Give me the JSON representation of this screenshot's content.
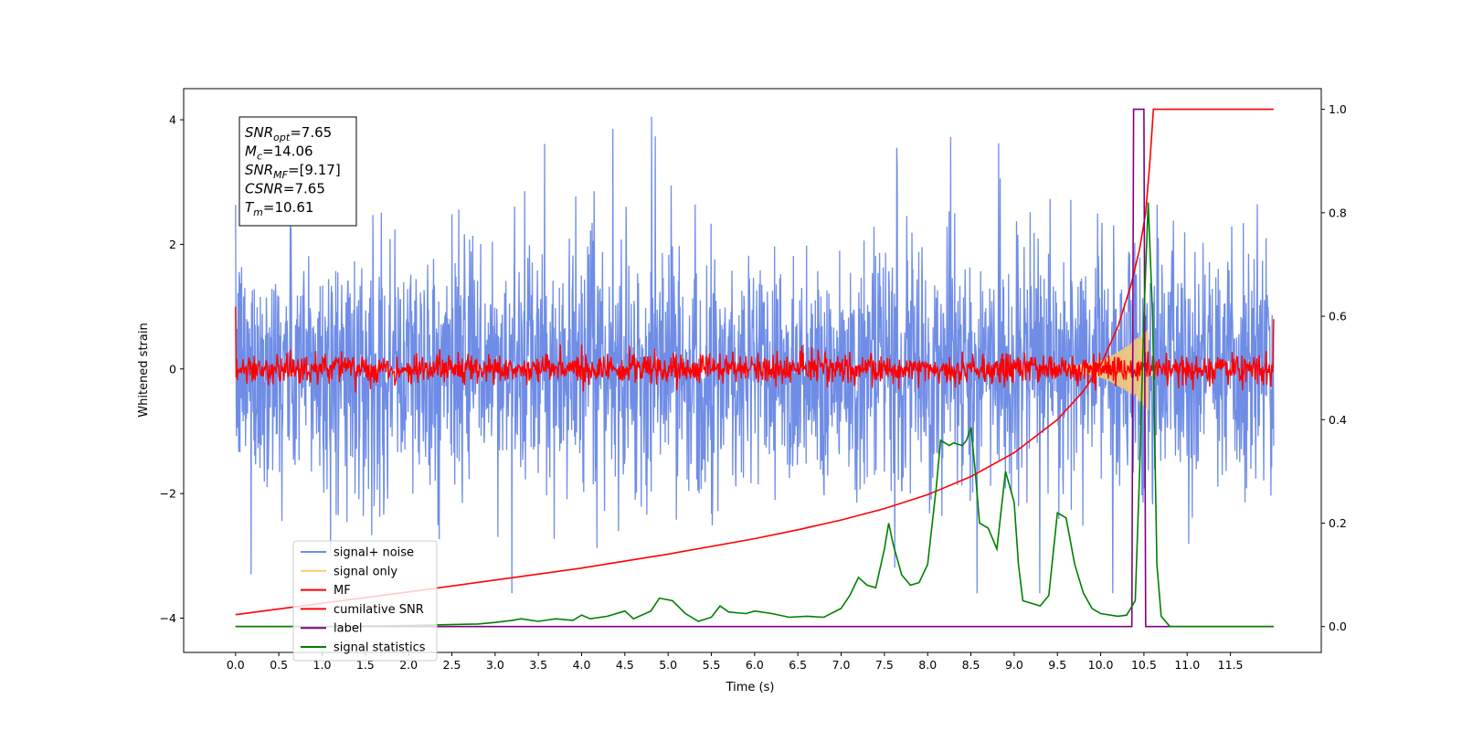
{
  "chart_data": {
    "type": "line",
    "xlabel": "Time (s)",
    "ylabel": "Whitened strain",
    "xlim": [
      -0.6,
      12.55
    ],
    "ylim": [
      -4.55,
      4.5
    ],
    "y2lim": [
      -0.05,
      1.04
    ],
    "x_ticks": [
      "0.0",
      "0.5",
      "1.0",
      "1.5",
      "2.0",
      "2.5",
      "3.0",
      "3.5",
      "4.0",
      "4.5",
      "5.0",
      "5.5",
      "6.0",
      "6.5",
      "7.0",
      "7.5",
      "8.0",
      "8.5",
      "9.0",
      "9.5",
      "10.0",
      "10.5",
      "11.0",
      "11.5"
    ],
    "y_ticks": [
      "−4",
      "−2",
      "0",
      "2",
      "4"
    ],
    "y2_ticks": [
      "0.0",
      "0.2",
      "0.4",
      "0.6",
      "0.8",
      "1.0"
    ],
    "annotation": {
      "lines": [
        {
          "sym": "SNR",
          "sub": "opt",
          "val": "=7.65"
        },
        {
          "sym": "M",
          "sub": "c",
          "val": "=14.06"
        },
        {
          "sym": "SNR",
          "sub": "MF",
          "val": "=[9.17]"
        },
        {
          "sym": "CSNR",
          "sub": "",
          "val": "=7.65"
        },
        {
          "sym": "T",
          "sub": "m",
          "val": "=10.61"
        }
      ]
    },
    "series": [
      {
        "name": "signal+ noise",
        "color": "#6f8de6",
        "axis": "left",
        "amplitude": 2.3,
        "x_range": [
          0,
          12
        ]
      },
      {
        "name": "signal only",
        "color": "#f5c97a",
        "axis": "left",
        "chirp_end": 10.55,
        "peak_amplitude": 0.62
      },
      {
        "name": "MF",
        "color": "#ff0000",
        "axis": "left",
        "amplitude": 0.12,
        "x_range": [
          0,
          12
        ]
      },
      {
        "name": "cumilative SNR",
        "color": "#ff0000",
        "axis": "right",
        "points": [
          [
            0.0,
            0.023
          ],
          [
            1.0,
            0.045
          ],
          [
            2.0,
            0.067
          ],
          [
            3.0,
            0.09
          ],
          [
            4.0,
            0.113
          ],
          [
            5.0,
            0.14
          ],
          [
            6.0,
            0.17
          ],
          [
            6.5,
            0.187
          ],
          [
            7.0,
            0.206
          ],
          [
            7.5,
            0.228
          ],
          [
            8.0,
            0.255
          ],
          [
            8.5,
            0.29
          ],
          [
            9.0,
            0.336
          ],
          [
            9.5,
            0.4
          ],
          [
            9.8,
            0.455
          ],
          [
            10.0,
            0.505
          ],
          [
            10.2,
            0.58
          ],
          [
            10.35,
            0.66
          ],
          [
            10.45,
            0.73
          ],
          [
            10.52,
            0.8
          ],
          [
            10.57,
            0.9
          ],
          [
            10.61,
            1.0
          ],
          [
            12.0,
            1.0
          ]
        ]
      },
      {
        "name": "label",
        "color": "#800080",
        "axis": "right",
        "points": [
          [
            0.0,
            0.0
          ],
          [
            10.36,
            0.0
          ],
          [
            10.38,
            1.0
          ],
          [
            10.5,
            1.0
          ],
          [
            10.52,
            0.0
          ],
          [
            12.0,
            0.0
          ]
        ]
      },
      {
        "name": "signal statistics",
        "color": "#008000",
        "axis": "right",
        "points": [
          [
            0.0,
            0.0
          ],
          [
            1.0,
            0.0
          ],
          [
            2.0,
            0.002
          ],
          [
            2.8,
            0.005
          ],
          [
            3.0,
            0.008
          ],
          [
            3.2,
            0.012
          ],
          [
            3.3,
            0.015
          ],
          [
            3.5,
            0.01
          ],
          [
            3.7,
            0.015
          ],
          [
            3.9,
            0.012
          ],
          [
            4.0,
            0.022
          ],
          [
            4.1,
            0.015
          ],
          [
            4.3,
            0.02
          ],
          [
            4.5,
            0.03
          ],
          [
            4.6,
            0.015
          ],
          [
            4.8,
            0.03
          ],
          [
            4.9,
            0.055
          ],
          [
            5.05,
            0.05
          ],
          [
            5.2,
            0.025
          ],
          [
            5.35,
            0.01
          ],
          [
            5.5,
            0.018
          ],
          [
            5.6,
            0.04
          ],
          [
            5.7,
            0.028
          ],
          [
            5.9,
            0.025
          ],
          [
            6.0,
            0.03
          ],
          [
            6.2,
            0.025
          ],
          [
            6.4,
            0.018
          ],
          [
            6.6,
            0.02
          ],
          [
            6.8,
            0.018
          ],
          [
            7.0,
            0.035
          ],
          [
            7.1,
            0.06
          ],
          [
            7.2,
            0.095
          ],
          [
            7.3,
            0.08
          ],
          [
            7.4,
            0.075
          ],
          [
            7.5,
            0.15
          ],
          [
            7.55,
            0.2
          ],
          [
            7.6,
            0.16
          ],
          [
            7.7,
            0.1
          ],
          [
            7.8,
            0.08
          ],
          [
            7.9,
            0.085
          ],
          [
            8.0,
            0.12
          ],
          [
            8.1,
            0.27
          ],
          [
            8.15,
            0.36
          ],
          [
            8.25,
            0.35
          ],
          [
            8.3,
            0.355
          ],
          [
            8.4,
            0.35
          ],
          [
            8.45,
            0.36
          ],
          [
            8.5,
            0.385
          ],
          [
            8.55,
            0.3
          ],
          [
            8.6,
            0.2
          ],
          [
            8.7,
            0.19
          ],
          [
            8.8,
            0.15
          ],
          [
            8.9,
            0.3
          ],
          [
            9.0,
            0.24
          ],
          [
            9.05,
            0.12
          ],
          [
            9.1,
            0.05
          ],
          [
            9.3,
            0.04
          ],
          [
            9.4,
            0.06
          ],
          [
            9.5,
            0.22
          ],
          [
            9.6,
            0.21
          ],
          [
            9.7,
            0.12
          ],
          [
            9.8,
            0.065
          ],
          [
            9.9,
            0.035
          ],
          [
            10.0,
            0.025
          ],
          [
            10.2,
            0.02
          ],
          [
            10.3,
            0.022
          ],
          [
            10.4,
            0.05
          ],
          [
            10.45,
            0.3
          ],
          [
            10.5,
            0.6
          ],
          [
            10.55,
            0.82
          ],
          [
            10.6,
            0.6
          ],
          [
            10.65,
            0.12
          ],
          [
            10.7,
            0.02
          ],
          [
            10.8,
            0.0
          ],
          [
            12.0,
            0.0
          ]
        ]
      }
    ],
    "legend_position": "lower-left"
  }
}
